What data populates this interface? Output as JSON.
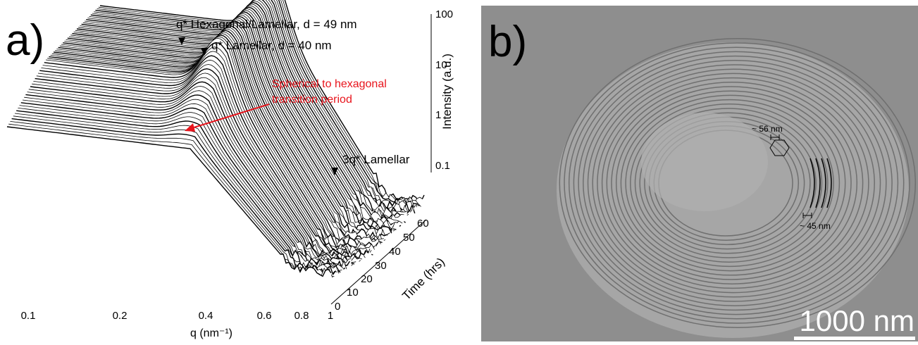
{
  "panel_a": {
    "label": "a)",
    "annotations": {
      "peak1": "q* Hexagonal/Lamellar, d = 49 nm",
      "peak2": "q* Lamellar, d = 40 nm",
      "transition_line1": "Spherical to hexagonal",
      "transition_line2": "transition period",
      "peak3": "3q* Lamellar"
    },
    "x_axis": {
      "title": "q (nm⁻¹)",
      "ticks": [
        "0.1",
        "0.2",
        "0.4",
        "0.6",
        "0.8",
        "1"
      ]
    },
    "z_axis": {
      "title": "Intensity (a.u.)",
      "ticks": [
        "100",
        "10",
        "1",
        "0.1"
      ]
    },
    "time_axis": {
      "title": "Time (hrs)",
      "ticks": [
        "0",
        "10",
        "20",
        "30",
        "40",
        "50",
        "60"
      ]
    }
  },
  "panel_b": {
    "label": "b)",
    "hex_spacing": "~ 56 nm",
    "lamellar_spacing": "~ 45 nm",
    "scale_bar": "1000 nm"
  }
}
